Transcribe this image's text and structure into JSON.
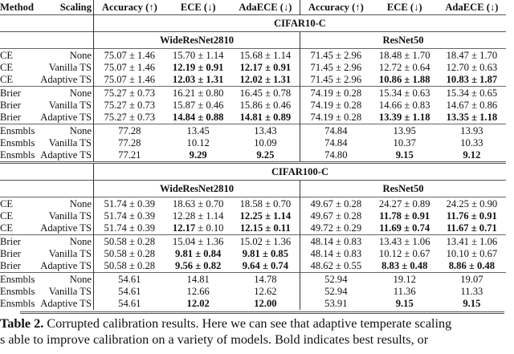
{
  "header": {
    "method": "Method",
    "scaling": "Scaling",
    "cols": [
      "Accuracy (↑)",
      "ECE (↓)",
      "AdaECE (↓)",
      "Accuracy (↑)",
      "ECE (↓)",
      "AdaECE (↓)"
    ]
  },
  "datasets": [
    {
      "name": "CIFAR10-C",
      "models": [
        "WideResNet2810",
        "ResNet50"
      ],
      "groups": [
        [
          [
            "CE",
            "None",
            [
              "75.07 ± 1.46",
              "15.70 ± 1.14",
              "15.68 ± 1.14",
              "71.45 ± 2.96",
              "18.48 ± 1.70",
              "18.47 ± 1.70"
            ],
            [
              0,
              0,
              0,
              0,
              0,
              0
            ]
          ],
          [
            "CE",
            "Vanilla TS",
            [
              "75.07 ± 1.46",
              "12.19 ± 0.91",
              "12.17 ± 0.91",
              "71.45 ± 2.96",
              "12.72 ± 0.64",
              "12.70 ± 0.63"
            ],
            [
              0,
              1,
              1,
              0,
              0,
              0
            ]
          ],
          [
            "CE",
            "Adaptive TS",
            [
              "75.07 ± 1.46",
              "12.03 ± 1.31",
              "12.02 ± 1.31",
              "71.45 ± 2.96",
              "10.86 ± 1.88",
              "10.83 ± 1.87"
            ],
            [
              0,
              1,
              1,
              0,
              1,
              1
            ]
          ]
        ],
        [
          [
            "Brier",
            "None",
            [
              "75.27 ± 0.73",
              "16.21 ± 0.80",
              "16.45 ± 0.78",
              "74.19 ± 0.28",
              "15.34 ± 0.63",
              "15.34 ± 0.65"
            ],
            [
              0,
              0,
              0,
              0,
              0,
              0
            ]
          ],
          [
            "Brier",
            "Vanilla TS",
            [
              "75.27 ± 0.73",
              "15.87 ± 0.46",
              "15.86 ± 0.46",
              "74.19 ± 0.28",
              "14.66 ± 0.83",
              "14.67 ± 0.86"
            ],
            [
              0,
              0,
              0,
              0,
              0,
              0
            ]
          ],
          [
            "Brier",
            "Adaptive TS",
            [
              "75.27 ± 0.73",
              "14.84 ± 0.88",
              "14.81 ± 0.89",
              "74.19 ± 0.28",
              "13.39 ± 1.18",
              "13.35 ± 1.18"
            ],
            [
              0,
              1,
              1,
              0,
              1,
              1
            ]
          ]
        ],
        [
          [
            "Ensmbls",
            "None",
            [
              "77.28",
              "13.45",
              "13.43",
              "74.84",
              "13.95",
              "13.93"
            ],
            [
              0,
              0,
              0,
              0,
              0,
              0
            ]
          ],
          [
            "Ensmbls",
            "Vanilla TS",
            [
              "77.28",
              "10.12",
              "10.09",
              "74.84",
              "10.37",
              "10.33"
            ],
            [
              0,
              0,
              0,
              0,
              0,
              0
            ]
          ],
          [
            "Ensmbls",
            "Adaptive TS",
            [
              "77.21",
              "9.29",
              "9.25",
              "74.80",
              "9.15",
              "9.12"
            ],
            [
              0,
              1,
              1,
              0,
              1,
              1
            ]
          ]
        ]
      ]
    },
    {
      "name": "CIFAR100-C",
      "models": [
        "WideResNet2810",
        "ResNet50"
      ],
      "groups": [
        [
          [
            "CE",
            "None",
            [
              "51.74 ± 0.39",
              "18.63 ± 0.70",
              "18.58 ± 0.70",
              "49.67 ± 0.28",
              "24.27 ± 0.89",
              "24.25 ± 0.90"
            ],
            [
              0,
              0,
              0,
              0,
              0,
              0
            ]
          ],
          [
            "CE",
            "Vanilla TS",
            [
              "51.74 ± 0.39",
              "12.28 ± 1.14",
              "12.25 ± 1.14",
              "49.67 ± 0.28",
              "11.78 ± 0.91",
              "11.76 ± 0.91"
            ],
            [
              0,
              0,
              1,
              0,
              1,
              1
            ]
          ],
          [
            "CE",
            "Adaptive TS",
            [
              "51.74 ± 0.39",
              "12.17 ± 0.10",
              "12.15 ± 0.11",
              "49.72 ± 0.29",
              "11.69 ± 0.74",
              "11.67 ± 0.71"
            ],
            [
              0,
              2,
              1,
              0,
              1,
              1
            ]
          ]
        ],
        [
          [
            "Brier",
            "None",
            [
              "50.58 ± 0.28",
              "15.04 ± 1.36",
              "15.02 ± 1.36",
              "48.14 ± 0.83",
              "13.43 ± 1.06",
              "13.41 ± 1.06"
            ],
            [
              0,
              0,
              0,
              0,
              0,
              0
            ]
          ],
          [
            "Brier",
            "Vanilla TS",
            [
              "50.58 ± 0.28",
              "9.81 ± 0.84",
              "9.81 ± 0.85",
              "48.14 ± 0.83",
              "10.12 ± 0.67",
              "10.10 ± 0.67"
            ],
            [
              0,
              1,
              1,
              0,
              0,
              0
            ]
          ],
          [
            "Brier",
            "Adaptive TS",
            [
              "50.58 ± 0.28",
              "9.56 ± 0.82",
              "9.64 ± 0.74",
              "48.62 ± 0.55",
              "8.83 ± 0.48",
              "8.86 ± 0.48"
            ],
            [
              0,
              1,
              1,
              0,
              1,
              1
            ]
          ]
        ],
        [
          [
            "Ensmbls",
            "None",
            [
              "54.61",
              "14.81",
              "14.78",
              "52.94",
              "19.12",
              "19.07"
            ],
            [
              0,
              0,
              0,
              0,
              0,
              0
            ]
          ],
          [
            "Ensmbls",
            "Vanilla TS",
            [
              "54.61",
              "12.66",
              "12.62",
              "52.94",
              "11.36",
              "11.33"
            ],
            [
              0,
              0,
              0,
              0,
              0,
              0
            ]
          ],
          [
            "Ensmbls",
            "Adaptive TS",
            [
              "54.61",
              "12.02",
              "12.00",
              "53.91",
              "9.15",
              "9.15"
            ],
            [
              0,
              1,
              1,
              0,
              1,
              1
            ]
          ]
        ]
      ]
    }
  ],
  "caption": {
    "label": "Table 2.",
    "line1": " Corrupted calibration results. Here we can see that adaptive temperate scaling",
    "line2": "s able to improve calibration on a variety of models. Bold indicates best results, or"
  }
}
